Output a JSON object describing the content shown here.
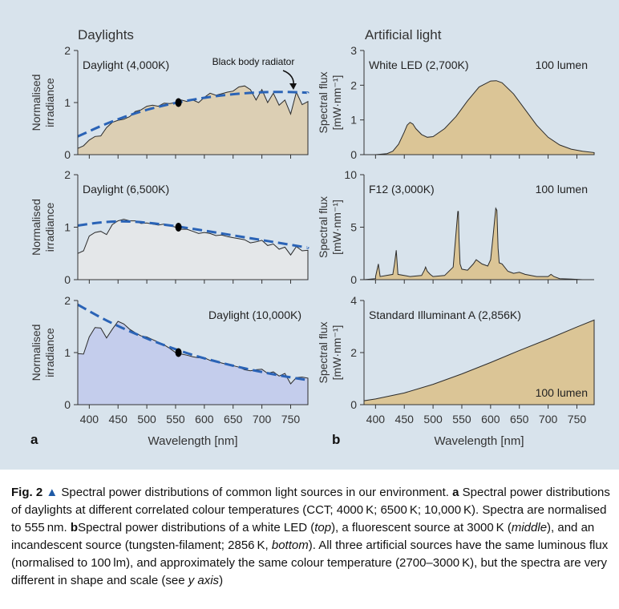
{
  "figure": {
    "panel_a_title": "Daylights",
    "panel_b_title": "Artificial light",
    "panel_a_label": "a",
    "panel_b_label": "b",
    "xlabel": "Wavelength [nm]",
    "ylabel_a": [
      "Normalised",
      "irradiance"
    ],
    "ylabel_b": [
      "Spectral flux",
      "[mW·nm⁻¹]"
    ],
    "annotation": "Black body radiator"
  },
  "caption": {
    "fig_label": "Fig. 2",
    "triangle": "▲",
    "intro": "Spectral power distributions of common light sources in our environment.",
    "part_a_label": "a",
    "part_a_text": "Spectral power distributions of daylights at different correlated colour temperatures (CCT; 4000 K; 6500 K; 10,000 K). Spectra are normalised to 555 nm.",
    "part_b_label": "b",
    "part_b_text_1": "Spectral power distributions of a white LED (",
    "top": "top",
    "part_b_text_2": "), a fluorescent source at 3000 K (",
    "middle": "middle",
    "part_b_text_3": "), and an incandescent source (tungsten-filament; 2856 K,",
    "bottom": "bottom",
    "part_b_text_4": "). All three artificial sources have the same luminous flux (normalised to 100 lm), and approximately the same colour temperature (2700–3000 K), but the spectra are very different in shape and scale (see",
    "y_axis": "y axis",
    "end": ")"
  },
  "chart_data": [
    {
      "type": "area",
      "title": "Daylight (4,000K)",
      "annotation": "Black body radiator",
      "fill": "#dccfb4",
      "xlim": [
        380,
        780
      ],
      "ylim": [
        0,
        2
      ],
      "yticks": [
        0,
        1,
        2
      ],
      "xticks": [
        400,
        450,
        500,
        550,
        600,
        650,
        700,
        750
      ],
      "series": [
        {
          "x": [
            380,
            390,
            400,
            410,
            420,
            430,
            440,
            450,
            460,
            470,
            480,
            490,
            500,
            510,
            520,
            530,
            540,
            550,
            560,
            570,
            580,
            590,
            600,
            610,
            620,
            630,
            640,
            650,
            660,
            670,
            680,
            690,
            700,
            710,
            720,
            730,
            740,
            750,
            760,
            770,
            780
          ],
          "y": [
            0.12,
            0.17,
            0.28,
            0.35,
            0.36,
            0.52,
            0.62,
            0.66,
            0.68,
            0.73,
            0.83,
            0.86,
            0.93,
            0.95,
            0.93,
            0.99,
            0.98,
            1.0,
            1.05,
            1.02,
            1.05,
            1.0,
            1.1,
            1.18,
            1.14,
            1.17,
            1.2,
            1.22,
            1.3,
            1.32,
            1.25,
            1.05,
            1.25,
            1.0,
            1.18,
            0.95,
            1.05,
            0.78,
            1.2,
            0.96,
            1.02
          ]
        },
        {
          "name": "Black body radiator",
          "x": [
            380,
            430,
            480,
            530,
            580,
            630,
            680,
            730,
            780
          ],
          "y": [
            0.35,
            0.6,
            0.8,
            0.95,
            1.06,
            1.14,
            1.19,
            1.21,
            1.19
          ]
        }
      ],
      "marker": {
        "x": 555,
        "y": 1.0
      }
    },
    {
      "type": "area",
      "title": "Daylight (6,500K)",
      "fill": "#e4e7e9",
      "xlim": [
        380,
        780
      ],
      "ylim": [
        0,
        2
      ],
      "yticks": [
        0,
        1,
        2
      ],
      "xticks": [
        400,
        450,
        500,
        550,
        600,
        650,
        700,
        750
      ],
      "series": [
        {
          "x": [
            380,
            390,
            400,
            410,
            420,
            430,
            440,
            450,
            460,
            470,
            480,
            490,
            500,
            510,
            520,
            530,
            540,
            550,
            560,
            570,
            580,
            590,
            600,
            610,
            620,
            630,
            640,
            650,
            660,
            670,
            680,
            690,
            700,
            710,
            720,
            730,
            740,
            750,
            760,
            770,
            780
          ],
          "y": [
            0.5,
            0.55,
            0.83,
            0.9,
            0.92,
            0.86,
            1.05,
            1.12,
            1.15,
            1.12,
            1.12,
            1.07,
            1.08,
            1.06,
            1.04,
            1.06,
            1.03,
            1.0,
            0.96,
            0.96,
            0.92,
            0.88,
            0.9,
            0.88,
            0.84,
            0.85,
            0.82,
            0.8,
            0.78,
            0.76,
            0.7,
            0.72,
            0.75,
            0.65,
            0.68,
            0.58,
            0.62,
            0.47,
            0.63,
            0.55,
            0.56
          ]
        },
        {
          "name": "Black body radiator",
          "x": [
            380,
            430,
            480,
            530,
            580,
            630,
            680,
            730,
            780
          ],
          "y": [
            1.03,
            1.11,
            1.11,
            1.05,
            0.97,
            0.88,
            0.79,
            0.7,
            0.61
          ]
        }
      ],
      "marker": {
        "x": 555,
        "y": 1.0
      }
    },
    {
      "type": "area",
      "title": "Daylight (10,000K)",
      "fill": "#c4cdec",
      "xlim": [
        380,
        780
      ],
      "ylim": [
        0,
        2
      ],
      "yticks": [
        0,
        1,
        2
      ],
      "xticks": [
        400,
        450,
        500,
        550,
        600,
        650,
        700,
        750
      ],
      "series": [
        {
          "x": [
            380,
            390,
            400,
            410,
            420,
            430,
            440,
            450,
            460,
            470,
            480,
            490,
            500,
            510,
            520,
            530,
            540,
            550,
            560,
            570,
            580,
            590,
            600,
            610,
            620,
            630,
            640,
            650,
            660,
            670,
            680,
            690,
            700,
            710,
            720,
            730,
            740,
            750,
            760,
            770,
            780
          ],
          "y": [
            0.98,
            0.97,
            1.3,
            1.48,
            1.47,
            1.28,
            1.45,
            1.6,
            1.55,
            1.45,
            1.38,
            1.32,
            1.3,
            1.25,
            1.2,
            1.15,
            1.08,
            1.0,
            0.97,
            0.95,
            0.92,
            0.9,
            0.9,
            0.85,
            0.83,
            0.8,
            0.77,
            0.75,
            0.72,
            0.67,
            0.65,
            0.67,
            0.68,
            0.6,
            0.63,
            0.55,
            0.6,
            0.4,
            0.52,
            0.53,
            0.51
          ]
        },
        {
          "name": "Black body radiator",
          "x": [
            380,
            430,
            480,
            530,
            580,
            630,
            680,
            730,
            780
          ],
          "y": [
            1.92,
            1.61,
            1.36,
            1.14,
            0.95,
            0.8,
            0.67,
            0.56,
            0.47
          ]
        }
      ],
      "marker": {
        "x": 555,
        "y": 1.0
      }
    },
    {
      "type": "area",
      "title": "White LED (2,700K)",
      "annotation": "100 lumen",
      "fill": "#dbc596",
      "xlim": [
        380,
        780
      ],
      "ylim": [
        0,
        3
      ],
      "yticks": [
        0,
        1,
        2,
        3
      ],
      "xticks": [
        400,
        450,
        500,
        550,
        600,
        650,
        700,
        750
      ],
      "series": [
        {
          "x": [
            380,
            400,
            420,
            430,
            440,
            450,
            455,
            460,
            465,
            470,
            480,
            490,
            500,
            520,
            540,
            560,
            580,
            600,
            610,
            620,
            640,
            660,
            680,
            700,
            720,
            740,
            760,
            780
          ],
          "y": [
            0.0,
            0.0,
            0.03,
            0.1,
            0.3,
            0.65,
            0.85,
            0.93,
            0.88,
            0.75,
            0.58,
            0.5,
            0.52,
            0.75,
            1.1,
            1.55,
            1.95,
            2.12,
            2.13,
            2.07,
            1.75,
            1.3,
            0.85,
            0.5,
            0.28,
            0.16,
            0.1,
            0.06
          ]
        }
      ]
    },
    {
      "type": "area",
      "title": "F12 (3,000K)",
      "annotation": "100 lumen",
      "fill": "#dbc596",
      "xlim": [
        380,
        780
      ],
      "ylim": [
        0,
        10
      ],
      "yticks": [
        0,
        5,
        10
      ],
      "xticks": [
        400,
        450,
        500,
        550,
        600,
        650,
        700,
        750
      ],
      "series": [
        {
          "x": [
            380,
            400,
            400,
            405,
            408,
            430,
            433,
            436,
            439,
            460,
            480,
            485,
            487,
            490,
            495,
            500,
            520,
            535,
            540,
            543,
            544,
            545,
            547,
            550,
            560,
            570,
            575,
            585,
            595,
            600,
            605,
            609,
            611,
            613,
            615,
            620,
            630,
            640,
            650,
            660,
            680,
            700,
            705,
            710,
            720,
            740,
            760,
            780
          ],
          "y": [
            0.0,
            0.1,
            0.3,
            1.5,
            0.3,
            0.5,
            1.5,
            2.8,
            0.5,
            0.3,
            0.4,
            0.9,
            1.2,
            0.8,
            0.5,
            0.3,
            0.4,
            1.2,
            4.5,
            6.5,
            6.5,
            4.0,
            1.5,
            1.0,
            0.9,
            1.5,
            1.9,
            1.5,
            1.3,
            1.9,
            4.5,
            6.8,
            6.6,
            3.0,
            1.6,
            1.5,
            0.8,
            0.6,
            0.7,
            0.5,
            0.3,
            0.3,
            0.5,
            0.3,
            0.1,
            0.05,
            0.0,
            0.0
          ]
        }
      ]
    },
    {
      "type": "area",
      "title": "Standard Illuminant A (2,856K)",
      "annotation": "100 lumen",
      "fill": "#dbc596",
      "xlim": [
        380,
        780
      ],
      "ylim": [
        0,
        4
      ],
      "yticks": [
        0,
        2,
        4
      ],
      "xticks": [
        400,
        450,
        500,
        550,
        600,
        650,
        700,
        750
      ],
      "series": [
        {
          "x": [
            380,
            400,
            450,
            500,
            550,
            600,
            650,
            700,
            750,
            780
          ],
          "y": [
            0.15,
            0.22,
            0.45,
            0.78,
            1.18,
            1.62,
            2.08,
            2.52,
            2.98,
            3.25
          ]
        }
      ]
    }
  ]
}
